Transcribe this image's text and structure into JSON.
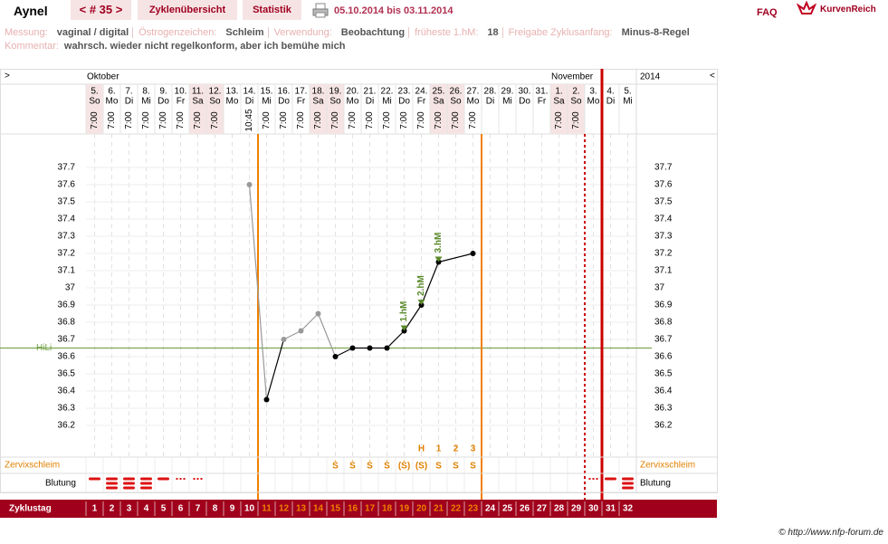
{
  "header": {
    "title": "Aynel",
    "cycle": "< # 35 >",
    "tabs": [
      "Zyklenübersicht",
      "Statistik"
    ],
    "date_range": "05.10.2014 bis 03.11.2014",
    "faq": "FAQ",
    "brand": "KurvenReich"
  },
  "info": [
    {
      "label": "Messung:",
      "value": "vaginal / digital"
    },
    {
      "label": "Östrogenzeichen:",
      "value": "Schleim"
    },
    {
      "label": "Verwendung:",
      "value": "Beobachtung"
    },
    {
      "label": "früheste 1.hM:",
      "value": "18"
    },
    {
      "label": "Freigabe Zyklusanfang:",
      "value": "Minus-8-Regel"
    }
  ],
  "comment": {
    "label": "Kommentar:",
    "value": "wahrsch. wieder nicht regelkonform, aber ich bemühe mich"
  },
  "chart": {
    "left_arrow": ">",
    "right_arrow": "<",
    "year": "2014",
    "days": [
      {
        "date": "5.",
        "weekday": "So",
        "time": "7:00",
        "weekend": true,
        "cd": 1,
        "month": "Oktober"
      },
      {
        "date": "6.",
        "weekday": "Mo",
        "time": "7:00",
        "weekend": false,
        "cd": 2
      },
      {
        "date": "7.",
        "weekday": "Di",
        "time": "7:00",
        "weekend": false,
        "cd": 3
      },
      {
        "date": "8.",
        "weekday": "Mi",
        "time": "7:00",
        "weekend": false,
        "cd": 4
      },
      {
        "date": "9.",
        "weekday": "Do",
        "time": "7:00",
        "weekend": false,
        "cd": 5
      },
      {
        "date": "10.",
        "weekday": "Fr",
        "time": "7:00",
        "weekend": false,
        "cd": 6
      },
      {
        "date": "11.",
        "weekday": "Sa",
        "time": "7:00",
        "weekend": true,
        "cd": 7
      },
      {
        "date": "12.",
        "weekday": "So",
        "time": "7:00",
        "weekend": true,
        "cd": 8
      },
      {
        "date": "13.",
        "weekday": "Mo",
        "time": null,
        "weekend": false,
        "cd": 9
      },
      {
        "date": "14.",
        "weekday": "Di",
        "time": "10:45",
        "weekend": false,
        "cd": 10
      },
      {
        "date": "15.",
        "weekday": "Mi",
        "time": "7:00",
        "weekend": false,
        "cd": 11
      },
      {
        "date": "16.",
        "weekday": "Do",
        "time": "7:00",
        "weekend": false,
        "cd": 12
      },
      {
        "date": "17.",
        "weekday": "Fr",
        "time": "7:00",
        "weekend": false,
        "cd": 13
      },
      {
        "date": "18.",
        "weekday": "Sa",
        "time": "7:00",
        "weekend": true,
        "cd": 14
      },
      {
        "date": "19.",
        "weekday": "So",
        "time": "7:00",
        "weekend": true,
        "cd": 15
      },
      {
        "date": "20.",
        "weekday": "Mo",
        "time": "7:00",
        "weekend": false,
        "cd": 16
      },
      {
        "date": "21.",
        "weekday": "Di",
        "time": "7:00",
        "weekend": false,
        "cd": 17
      },
      {
        "date": "22.",
        "weekday": "Mi",
        "time": "7:00",
        "weekend": false,
        "cd": 18
      },
      {
        "date": "23.",
        "weekday": "Do",
        "time": "7:00",
        "weekend": false,
        "cd": 19
      },
      {
        "date": "24.",
        "weekday": "Fr",
        "time": "7:00",
        "weekend": false,
        "cd": 20
      },
      {
        "date": "25.",
        "weekday": "Sa",
        "time": "7:00",
        "weekend": true,
        "cd": 21
      },
      {
        "date": "26.",
        "weekday": "So",
        "time": "7:00",
        "weekend": true,
        "cd": 22
      },
      {
        "date": "27.",
        "weekday": "Mo",
        "time": "7:00",
        "weekend": false,
        "cd": 23
      },
      {
        "date": "28.",
        "weekday": "Di",
        "time": null,
        "weekend": false,
        "cd": 24
      },
      {
        "date": "29.",
        "weekday": "Mi",
        "time": null,
        "weekend": false,
        "cd": 25
      },
      {
        "date": "30.",
        "weekday": "Do",
        "time": null,
        "weekend": false,
        "cd": 26
      },
      {
        "date": "31.",
        "weekday": "Fr",
        "time": null,
        "weekend": false,
        "cd": 27
      },
      {
        "date": "1.",
        "weekday": "Sa",
        "time": "7:00",
        "weekend": true,
        "cd": 28,
        "month": "November"
      },
      {
        "date": "2.",
        "weekday": "So",
        "time": "7:00",
        "weekend": true,
        "cd": 29
      },
      {
        "date": "3.",
        "weekday": "Mo",
        "time": null,
        "weekend": false,
        "cd": 30
      },
      {
        "date": "4.",
        "weekday": "Di",
        "time": null,
        "weekend": false,
        "cd": 31
      },
      {
        "date": "5.",
        "weekday": "Mi",
        "time": null,
        "weekend": false,
        "cd": 32
      }
    ],
    "chart_data": {
      "type": "line",
      "ylim": [
        36.0,
        37.9
      ],
      "yticks": [
        36.2,
        36.3,
        36.4,
        36.5,
        36.6,
        36.7,
        36.8,
        36.9,
        37,
        37.1,
        37.2,
        37.3,
        37.4,
        37.5,
        37.6,
        37.7
      ],
      "grid": true,
      "series": [
        {
          "values": [
            null,
            null,
            null,
            null,
            null,
            null,
            null,
            null,
            null,
            37.6,
            36.35,
            36.7,
            36.75,
            36.85,
            36.6,
            36.65,
            36.65,
            36.65,
            36.75,
            36.9,
            37.15,
            null,
            37.2,
            null,
            null,
            null,
            null,
            null,
            null,
            null,
            null,
            null
          ],
          "colors": [
            null,
            null,
            null,
            null,
            null,
            null,
            null,
            null,
            null,
            "#999999",
            "#000000",
            "#999999",
            "#999999",
            "#999999",
            "#000000",
            "#000000",
            "#000000",
            "#000000",
            "#000000",
            "#000000",
            "#000000",
            null,
            "#000000",
            null,
            null,
            null,
            null,
            null,
            null,
            null,
            null,
            null
          ],
          "hm": [
            null,
            null,
            null,
            null,
            null,
            null,
            null,
            null,
            null,
            null,
            null,
            null,
            null,
            null,
            null,
            null,
            null,
            null,
            "1.hM",
            "2.hM",
            "3.hM",
            null,
            null,
            null,
            null,
            null,
            null,
            null,
            null,
            null,
            null,
            null
          ],
          "hm_color": "#5a8a2a"
        }
      ],
      "coverline": {
        "label": "HiLi",
        "value": 36.65,
        "color": "#6a9a3a"
      }
    },
    "phase": {
      "first": 11,
      "last": 23,
      "color": "#f08000"
    },
    "cycle_end": {
      "day": 30,
      "color": "#cc0000"
    },
    "cervix": {
      "label": "Zervixschleim",
      "values": [
        null,
        null,
        null,
        null,
        null,
        null,
        null,
        null,
        null,
        null,
        null,
        null,
        null,
        null,
        "Ṡ",
        "Ṡ",
        "Ṡ",
        "Ṡ",
        "(Ṡ)",
        "(S)",
        "S",
        "S",
        "S",
        null,
        null,
        null,
        null,
        null,
        null,
        null,
        null,
        null
      ],
      "peak": [
        null,
        null,
        null,
        null,
        null,
        null,
        null,
        null,
        null,
        null,
        null,
        null,
        null,
        null,
        null,
        null,
        null,
        null,
        null,
        "H",
        "1",
        "2",
        "3",
        null,
        null,
        null,
        null,
        null,
        null,
        null,
        null,
        null
      ]
    },
    "bleeding": {
      "label": "Blutung",
      "values": [
        2,
        3,
        3,
        3,
        2,
        1,
        1,
        null,
        null,
        null,
        null,
        null,
        null,
        null,
        null,
        null,
        null,
        null,
        null,
        null,
        null,
        null,
        null,
        null,
        null,
        null,
        null,
        null,
        null,
        1,
        2,
        3
      ],
      "color": "#dd1111"
    },
    "cycle_day_label": "Zyklustag"
  },
  "footer": "© http://www.nfp-forum.de"
}
